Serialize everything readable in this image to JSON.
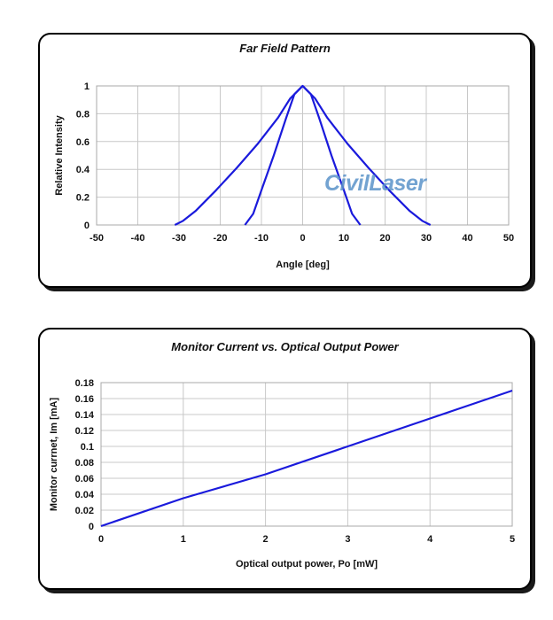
{
  "watermark": "CivilLaser",
  "chart_data": [
    {
      "type": "line",
      "title": "Far Field Pattern",
      "xlabel": "Angle [deg]",
      "ylabel": "Relative Intensity",
      "xlim": [
        -50,
        50
      ],
      "ylim": [
        0,
        1
      ],
      "xticks": [
        -50,
        -40,
        -30,
        -20,
        -10,
        0,
        10,
        20,
        30,
        40,
        50
      ],
      "yticks": [
        0,
        0.2,
        0.4,
        0.6,
        0.8,
        1
      ],
      "grid": true,
      "color": "#1a1adc",
      "series": [
        {
          "x": [
            -31,
            -29,
            -26,
            -21,
            -16,
            -11,
            -6,
            -3,
            0,
            3,
            6,
            11,
            16,
            21,
            26,
            29,
            31
          ],
          "y": [
            0,
            0.03,
            0.1,
            0.25,
            0.41,
            0.58,
            0.77,
            0.91,
            1,
            0.91,
            0.77,
            0.58,
            0.41,
            0.25,
            0.1,
            0.03,
            0
          ]
        },
        {
          "x": [
            -14,
            -12,
            -10,
            -7,
            -4,
            -2,
            0,
            2,
            4,
            7,
            10,
            12,
            14
          ],
          "y": [
            0,
            0.08,
            0.25,
            0.5,
            0.77,
            0.94,
            1,
            0.94,
            0.77,
            0.5,
            0.25,
            0.08,
            0
          ]
        }
      ]
    },
    {
      "type": "line",
      "title": "Monitor Current vs. Optical Output Power",
      "xlabel": "Optical output power, Po [mW]",
      "ylabel": "Monitor currnet, Im [mA]",
      "xlim": [
        0,
        5
      ],
      "ylim": [
        0,
        0.18
      ],
      "xticks": [
        0,
        1,
        2,
        3,
        4,
        5
      ],
      "yticks": [
        0,
        0.02,
        0.04,
        0.06,
        0.08,
        0.1,
        0.12,
        0.14,
        0.16,
        0.18
      ],
      "grid": true,
      "color": "#1a1adc",
      "series": [
        {
          "x": [
            0,
            1,
            2,
            3,
            4,
            5
          ],
          "y": [
            0,
            0.035,
            0.065,
            0.1,
            0.135,
            0.17
          ]
        }
      ]
    }
  ]
}
